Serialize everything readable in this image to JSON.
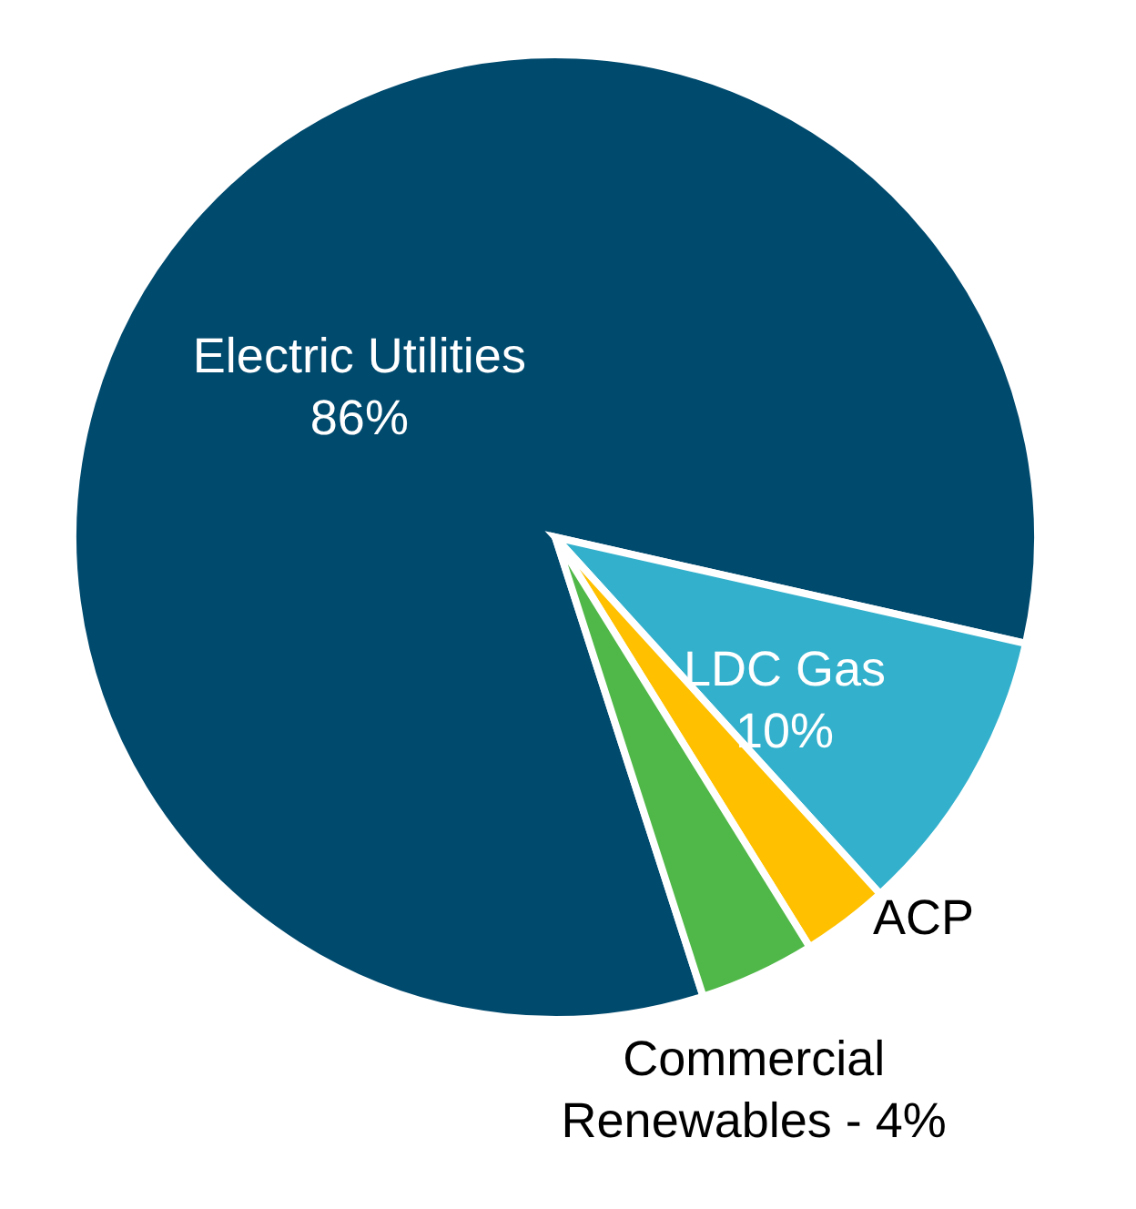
{
  "chart_data": {
    "type": "pie",
    "categories": [
      "Electric Utilities",
      "LDC Gas",
      "ACP",
      "Commercial Renewables -"
    ],
    "values": [
      86,
      10,
      3,
      4
    ],
    "value_labels": [
      "86%",
      "10%",
      null,
      "4%"
    ],
    "colors": [
      "#004a6e",
      "#33b0cc",
      "#ffc000",
      "#50b848"
    ]
  }
}
